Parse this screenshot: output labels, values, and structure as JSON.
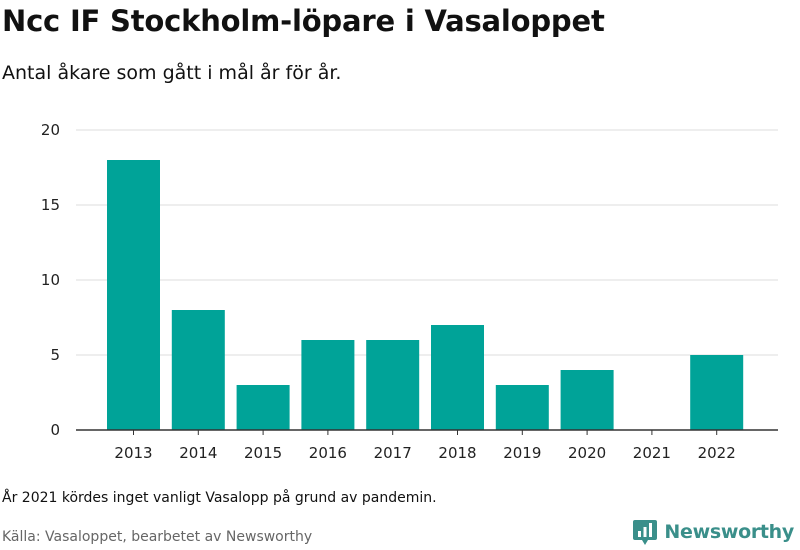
{
  "header": {
    "title": "Ncc IF Stockholm-löpare i Vasaloppet",
    "subtitle": "Antal åkare som gått i mål år för år."
  },
  "footer": {
    "note": "År 2021 kördes inget vanligt Vasalopp på grund av pandemin.",
    "source": "Källa: Vasaloppet, bearbetet av Newsworthy",
    "brand": "Newsworthy",
    "brand_icon": "newsworthy-logo-icon"
  },
  "colors": {
    "bar": "#00a398",
    "grid": "#dddddd",
    "axis": "#333333",
    "brand": "#3a8f8a"
  },
  "chart_data": {
    "type": "bar",
    "categories": [
      "2013",
      "2014",
      "2015",
      "2016",
      "2017",
      "2018",
      "2019",
      "2020",
      "2021",
      "2022"
    ],
    "values": [
      18,
      8,
      3,
      6,
      6,
      7,
      3,
      4,
      0,
      5
    ],
    "yticks": [
      0,
      5,
      10,
      15,
      20
    ],
    "ylim": [
      0,
      20
    ],
    "grid": true,
    "legend": "none"
  }
}
